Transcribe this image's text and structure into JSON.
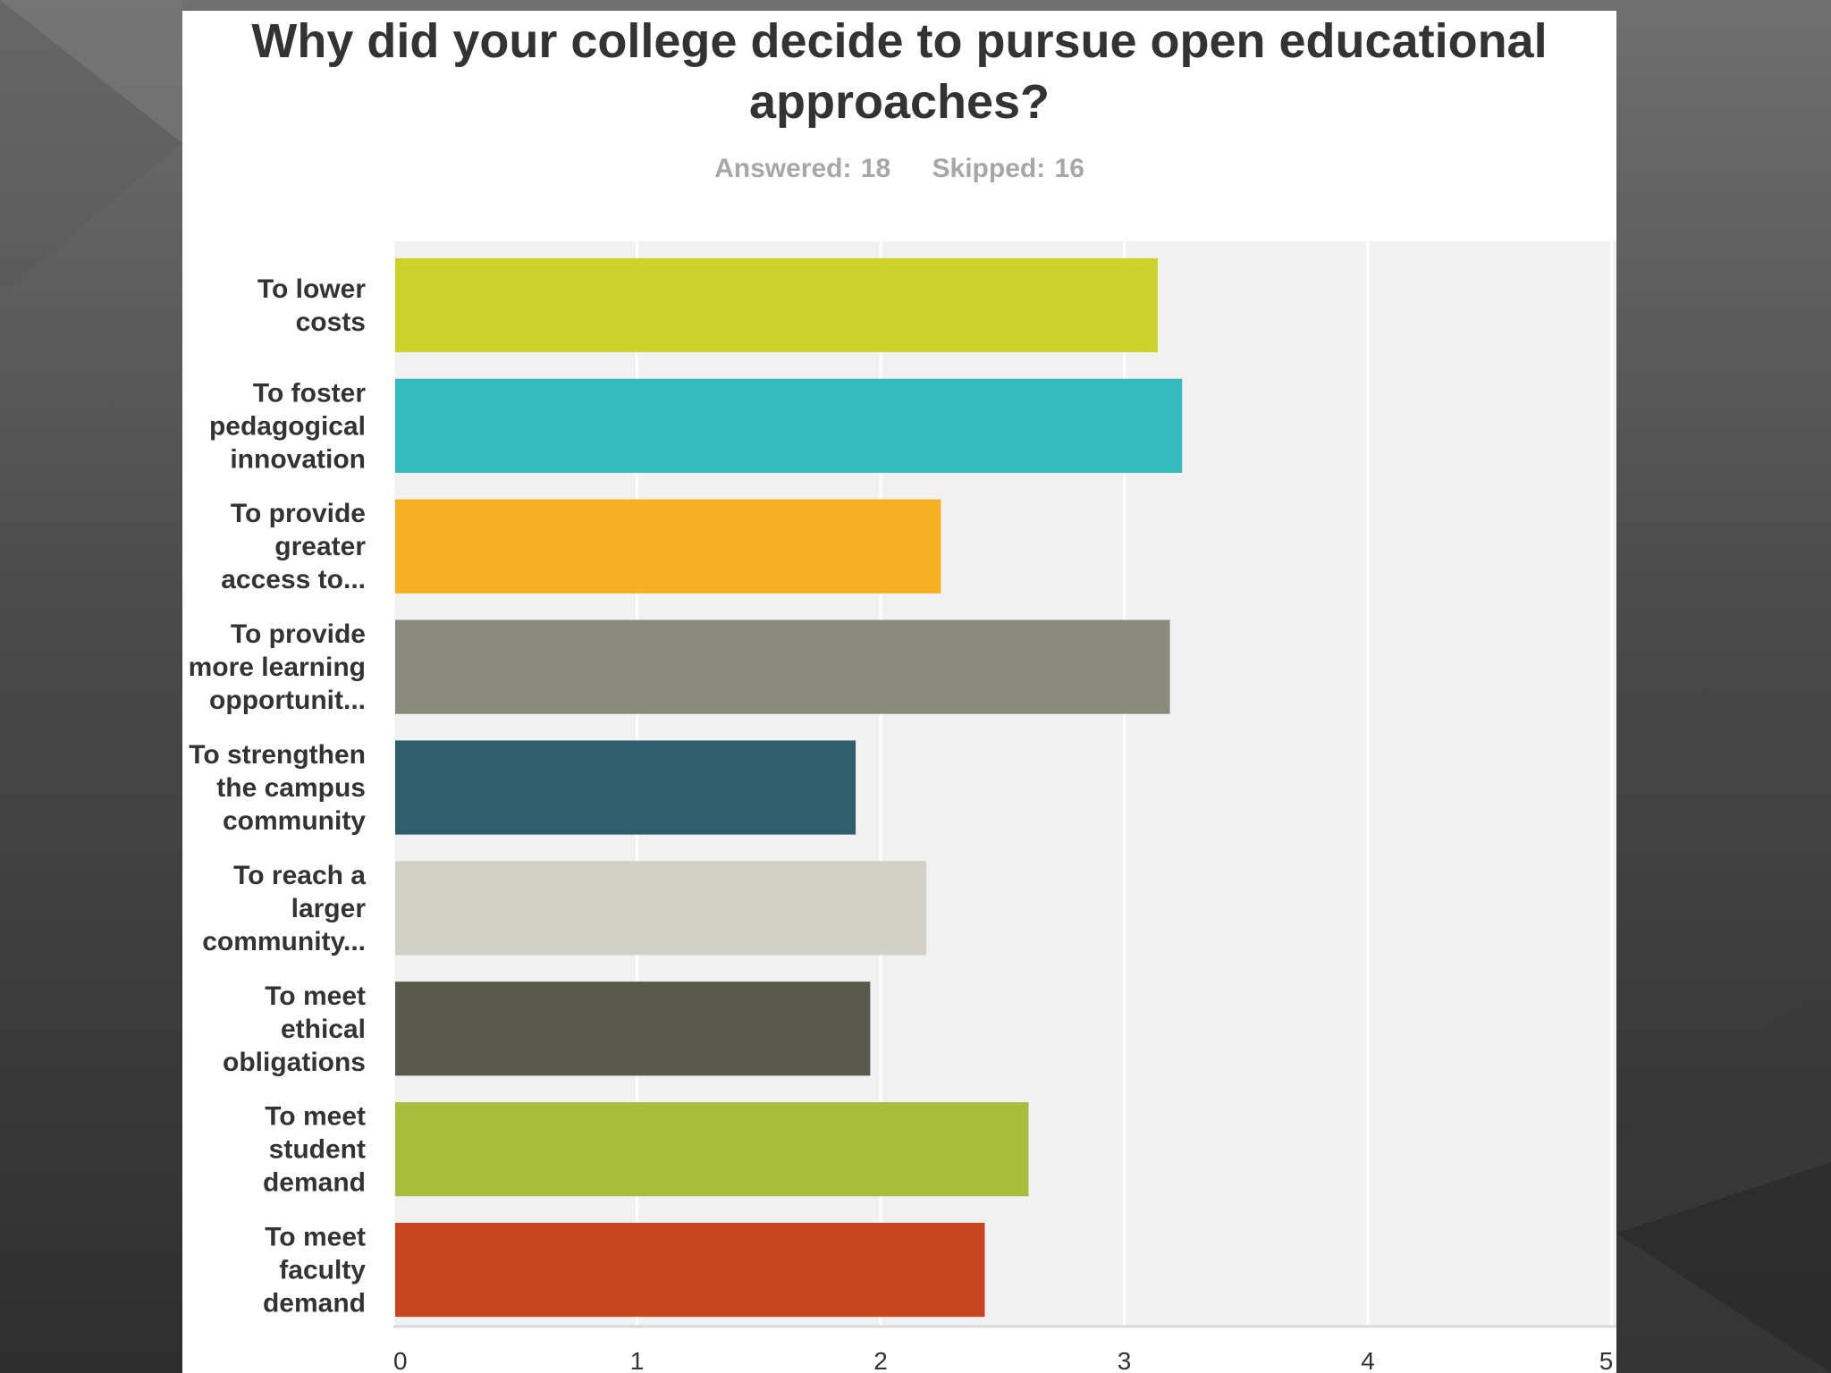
{
  "chart_data": {
    "type": "bar",
    "orientation": "horizontal",
    "title": "Why did your college decide to pursue open educational approaches?",
    "subtitle": {
      "answered": "Answered: 18",
      "skipped": "Skipped: 16"
    },
    "categories": [
      [
        "To lower",
        "costs"
      ],
      [
        "To foster",
        "pedagogical",
        "innovation"
      ],
      [
        "To provide",
        "greater",
        "access to..."
      ],
      [
        "To provide",
        "more learning",
        "opportunit..."
      ],
      [
        "To strengthen",
        "the campus",
        "community"
      ],
      [
        "To reach a",
        "larger",
        "community..."
      ],
      [
        "To meet",
        "ethical",
        "obligations"
      ],
      [
        "To meet",
        "student",
        "demand"
      ],
      [
        "To meet",
        "faculty",
        "demand"
      ]
    ],
    "values": [
      3.13,
      3.23,
      2.24,
      3.18,
      1.89,
      2.18,
      1.95,
      2.6,
      2.42
    ],
    "colors": [
      "#cdd32b",
      "#35bcbf",
      "#f6ae22",
      "#8b8b7d",
      "#2f5e6d",
      "#d0d0c4",
      "#5a5a4c",
      "#a9bd3c",
      "#c9431d"
    ],
    "xlim": [
      0,
      5
    ],
    "xticks": [
      "0",
      "1",
      "2",
      "3",
      "4",
      "5"
    ],
    "grid": true,
    "legend": "none"
  }
}
